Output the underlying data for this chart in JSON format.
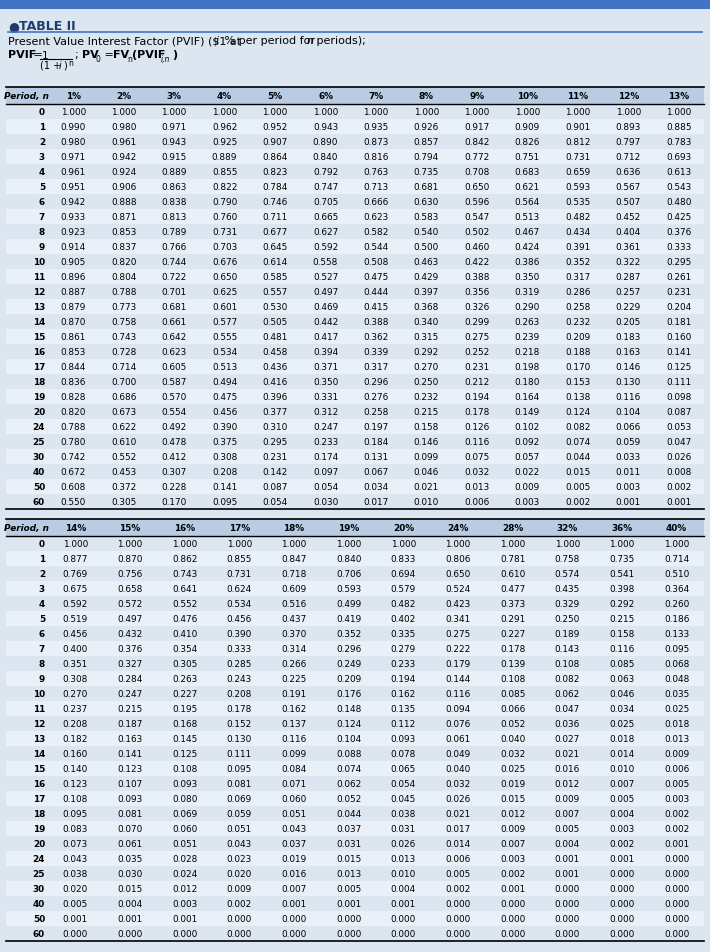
{
  "bg_color": "#dce6f1",
  "header_col_color": "#b8cce4",
  "row_color_a": "#dce6f1",
  "row_color_b": "#e9f0f8",
  "top_bar_color": "#4472c4",
  "title": "TABLE II",
  "table1_cols": [
    "Period, n",
    "1%",
    "2%",
    "3%",
    "4%",
    "5%",
    "6%",
    "7%",
    "8%",
    "9%",
    "10%",
    "11%",
    "12%",
    "13%"
  ],
  "table1_rows": [
    [
      0,
      1.0,
      1.0,
      1.0,
      1.0,
      1.0,
      1.0,
      1.0,
      1.0,
      1.0,
      1.0,
      1.0,
      1.0,
      1.0
    ],
    [
      1,
      0.99,
      0.98,
      0.971,
      0.962,
      0.952,
      0.943,
      0.935,
      0.926,
      0.917,
      0.909,
      0.901,
      0.893,
      0.885
    ],
    [
      2,
      0.98,
      0.961,
      0.943,
      0.925,
      0.907,
      0.89,
      0.873,
      0.857,
      0.842,
      0.826,
      0.812,
      0.797,
      0.783
    ],
    [
      3,
      0.971,
      0.942,
      0.915,
      0.889,
      0.864,
      0.84,
      0.816,
      0.794,
      0.772,
      0.751,
      0.731,
      0.712,
      0.693
    ],
    [
      4,
      0.961,
      0.924,
      0.889,
      0.855,
      0.823,
      0.792,
      0.763,
      0.735,
      0.708,
      0.683,
      0.659,
      0.636,
      0.613
    ],
    [
      5,
      0.951,
      0.906,
      0.863,
      0.822,
      0.784,
      0.747,
      0.713,
      0.681,
      0.65,
      0.621,
      0.593,
      0.567,
      0.543
    ],
    [
      6,
      0.942,
      0.888,
      0.838,
      0.79,
      0.746,
      0.705,
      0.666,
      0.63,
      0.596,
      0.564,
      0.535,
      0.507,
      0.48
    ],
    [
      7,
      0.933,
      0.871,
      0.813,
      0.76,
      0.711,
      0.665,
      0.623,
      0.583,
      0.547,
      0.513,
      0.482,
      0.452,
      0.425
    ],
    [
      8,
      0.923,
      0.853,
      0.789,
      0.731,
      0.677,
      0.627,
      0.582,
      0.54,
      0.502,
      0.467,
      0.434,
      0.404,
      0.376
    ],
    [
      9,
      0.914,
      0.837,
      0.766,
      0.703,
      0.645,
      0.592,
      0.544,
      0.5,
      0.46,
      0.424,
      0.391,
      0.361,
      0.333
    ],
    [
      10,
      0.905,
      0.82,
      0.744,
      0.676,
      0.614,
      0.558,
      0.508,
      0.463,
      0.422,
      0.386,
      0.352,
      0.322,
      0.295
    ],
    [
      11,
      0.896,
      0.804,
      0.722,
      0.65,
      0.585,
      0.527,
      0.475,
      0.429,
      0.388,
      0.35,
      0.317,
      0.287,
      0.261
    ],
    [
      12,
      0.887,
      0.788,
      0.701,
      0.625,
      0.557,
      0.497,
      0.444,
      0.397,
      0.356,
      0.319,
      0.286,
      0.257,
      0.231
    ],
    [
      13,
      0.879,
      0.773,
      0.681,
      0.601,
      0.53,
      0.469,
      0.415,
      0.368,
      0.326,
      0.29,
      0.258,
      0.229,
      0.204
    ],
    [
      14,
      0.87,
      0.758,
      0.661,
      0.577,
      0.505,
      0.442,
      0.388,
      0.34,
      0.299,
      0.263,
      0.232,
      0.205,
      0.181
    ],
    [
      15,
      0.861,
      0.743,
      0.642,
      0.555,
      0.481,
      0.417,
      0.362,
      0.315,
      0.275,
      0.239,
      0.209,
      0.183,
      0.16
    ],
    [
      16,
      0.853,
      0.728,
      0.623,
      0.534,
      0.458,
      0.394,
      0.339,
      0.292,
      0.252,
      0.218,
      0.188,
      0.163,
      0.141
    ],
    [
      17,
      0.844,
      0.714,
      0.605,
      0.513,
      0.436,
      0.371,
      0.317,
      0.27,
      0.231,
      0.198,
      0.17,
      0.146,
      0.125
    ],
    [
      18,
      0.836,
      0.7,
      0.587,
      0.494,
      0.416,
      0.35,
      0.296,
      0.25,
      0.212,
      0.18,
      0.153,
      0.13,
      0.111
    ],
    [
      19,
      0.828,
      0.686,
      0.57,
      0.475,
      0.396,
      0.331,
      0.276,
      0.232,
      0.194,
      0.164,
      0.138,
      0.116,
      0.098
    ],
    [
      20,
      0.82,
      0.673,
      0.554,
      0.456,
      0.377,
      0.312,
      0.258,
      0.215,
      0.178,
      0.149,
      0.124,
      0.104,
      0.087
    ],
    [
      24,
      0.788,
      0.622,
      0.492,
      0.39,
      0.31,
      0.247,
      0.197,
      0.158,
      0.126,
      0.102,
      0.082,
      0.066,
      0.053
    ],
    [
      25,
      0.78,
      0.61,
      0.478,
      0.375,
      0.295,
      0.233,
      0.184,
      0.146,
      0.116,
      0.092,
      0.074,
      0.059,
      0.047
    ],
    [
      30,
      0.742,
      0.552,
      0.412,
      0.308,
      0.231,
      0.174,
      0.131,
      0.099,
      0.075,
      0.057,
      0.044,
      0.033,
      0.026
    ],
    [
      40,
      0.672,
      0.453,
      0.307,
      0.208,
      0.142,
      0.097,
      0.067,
      0.046,
      0.032,
      0.022,
      0.015,
      0.011,
      0.008
    ],
    [
      50,
      0.608,
      0.372,
      0.228,
      0.141,
      0.087,
      0.054,
      0.034,
      0.021,
      0.013,
      0.009,
      0.005,
      0.003,
      0.002
    ],
    [
      60,
      0.55,
      0.305,
      0.17,
      0.095,
      0.054,
      0.03,
      0.017,
      0.01,
      0.006,
      0.003,
      0.002,
      0.001,
      0.001
    ]
  ],
  "table2_cols": [
    "Period, n",
    "14%",
    "15%",
    "16%",
    "17%",
    "18%",
    "19%",
    "20%",
    "24%",
    "28%",
    "32%",
    "36%",
    "40%"
  ],
  "table2_rows": [
    [
      0,
      1.0,
      1.0,
      1.0,
      1.0,
      1.0,
      1.0,
      1.0,
      1.0,
      1.0,
      1.0,
      1.0,
      1.0
    ],
    [
      1,
      0.877,
      0.87,
      0.862,
      0.855,
      0.847,
      0.84,
      0.833,
      0.806,
      0.781,
      0.758,
      0.735,
      0.714
    ],
    [
      2,
      0.769,
      0.756,
      0.743,
      0.731,
      0.718,
      0.706,
      0.694,
      0.65,
      0.61,
      0.574,
      0.541,
      0.51
    ],
    [
      3,
      0.675,
      0.658,
      0.641,
      0.624,
      0.609,
      0.593,
      0.579,
      0.524,
      0.477,
      0.435,
      0.398,
      0.364
    ],
    [
      4,
      0.592,
      0.572,
      0.552,
      0.534,
      0.516,
      0.499,
      0.482,
      0.423,
      0.373,
      0.329,
      0.292,
      0.26
    ],
    [
      5,
      0.519,
      0.497,
      0.476,
      0.456,
      0.437,
      0.419,
      0.402,
      0.341,
      0.291,
      0.25,
      0.215,
      0.186
    ],
    [
      6,
      0.456,
      0.432,
      0.41,
      0.39,
      0.37,
      0.352,
      0.335,
      0.275,
      0.227,
      0.189,
      0.158,
      0.133
    ],
    [
      7,
      0.4,
      0.376,
      0.354,
      0.333,
      0.314,
      0.296,
      0.279,
      0.222,
      0.178,
      0.143,
      0.116,
      0.095
    ],
    [
      8,
      0.351,
      0.327,
      0.305,
      0.285,
      0.266,
      0.249,
      0.233,
      0.179,
      0.139,
      0.108,
      0.085,
      0.068
    ],
    [
      9,
      0.308,
      0.284,
      0.263,
      0.243,
      0.225,
      0.209,
      0.194,
      0.144,
      0.108,
      0.082,
      0.063,
      0.048
    ],
    [
      10,
      0.27,
      0.247,
      0.227,
      0.208,
      0.191,
      0.176,
      0.162,
      0.116,
      0.085,
      0.062,
      0.046,
      0.035
    ],
    [
      11,
      0.237,
      0.215,
      0.195,
      0.178,
      0.162,
      0.148,
      0.135,
      0.094,
      0.066,
      0.047,
      0.034,
      0.025
    ],
    [
      12,
      0.208,
      0.187,
      0.168,
      0.152,
      0.137,
      0.124,
      0.112,
      0.076,
      0.052,
      0.036,
      0.025,
      0.018
    ],
    [
      13,
      0.182,
      0.163,
      0.145,
      0.13,
      0.116,
      0.104,
      0.093,
      0.061,
      0.04,
      0.027,
      0.018,
      0.013
    ],
    [
      14,
      0.16,
      0.141,
      0.125,
      0.111,
      0.099,
      0.088,
      0.078,
      0.049,
      0.032,
      0.021,
      0.014,
      0.009
    ],
    [
      15,
      0.14,
      0.123,
      0.108,
      0.095,
      0.084,
      0.074,
      0.065,
      0.04,
      0.025,
      0.016,
      0.01,
      0.006
    ],
    [
      16,
      0.123,
      0.107,
      0.093,
      0.081,
      0.071,
      0.062,
      0.054,
      0.032,
      0.019,
      0.012,
      0.007,
      0.005
    ],
    [
      17,
      0.108,
      0.093,
      0.08,
      0.069,
      0.06,
      0.052,
      0.045,
      0.026,
      0.015,
      0.009,
      0.005,
      0.003
    ],
    [
      18,
      0.095,
      0.081,
      0.069,
      0.059,
      0.051,
      0.044,
      0.038,
      0.021,
      0.012,
      0.007,
      0.004,
      0.002
    ],
    [
      19,
      0.083,
      0.07,
      0.06,
      0.051,
      0.043,
      0.037,
      0.031,
      0.017,
      0.009,
      0.005,
      0.003,
      0.002
    ],
    [
      20,
      0.073,
      0.061,
      0.051,
      0.043,
      0.037,
      0.031,
      0.026,
      0.014,
      0.007,
      0.004,
      0.002,
      0.001
    ],
    [
      24,
      0.043,
      0.035,
      0.028,
      0.023,
      0.019,
      0.015,
      0.013,
      0.006,
      0.003,
      0.001,
      0.001,
      0.0
    ],
    [
      25,
      0.038,
      0.03,
      0.024,
      0.02,
      0.016,
      0.013,
      0.01,
      0.005,
      0.002,
      0.001,
      0.0,
      0.0
    ],
    [
      30,
      0.02,
      0.015,
      0.012,
      0.009,
      0.007,
      0.005,
      0.004,
      0.002,
      0.001,
      0.0,
      0.0,
      0.0
    ],
    [
      40,
      0.005,
      0.004,
      0.003,
      0.002,
      0.001,
      0.001,
      0.001,
      0.0,
      0.0,
      0.0,
      0.0,
      0.0
    ],
    [
      50,
      0.001,
      0.001,
      0.001,
      0.0,
      0.0,
      0.0,
      0.0,
      0.0,
      0.0,
      0.0,
      0.0,
      0.0
    ],
    [
      60,
      0.0,
      0.0,
      0.0,
      0.0,
      0.0,
      0.0,
      0.0,
      0.0,
      0.0,
      0.0,
      0.0,
      0.0
    ]
  ]
}
